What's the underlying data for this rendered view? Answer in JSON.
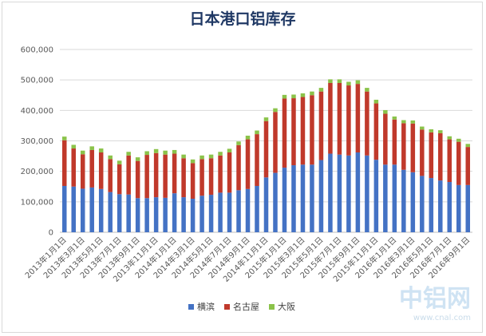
{
  "chart_data": {
    "type": "bar",
    "stacked": true,
    "title": "日本港口铝库存",
    "xlabel": "",
    "ylabel": "",
    "ylim": [
      0,
      600000
    ],
    "yticks": [
      "0",
      "100,000",
      "200,000",
      "300,000",
      "400,000",
      "500,000",
      "600,000"
    ],
    "grid": true,
    "legend": "bottom",
    "categories": [
      "2013年1月1日",
      "2013年2月1日",
      "2013年3月1日",
      "2013年4月1日",
      "2013年5月1日",
      "2013年6月1日",
      "2013年7月1日",
      "2013年8月1日",
      "2013年9月1日",
      "2013年10月1日",
      "2013年11月1日",
      "2013年12月1日",
      "2014年1月1日",
      "2014年2月1日",
      "2014年3月1日",
      "2014年4月1日",
      "2014年5月1日",
      "2014年6月1日",
      "2014年7月1日",
      "2014年8月1日",
      "2014年9月1日",
      "2014年10月1日",
      "2014年11月1日",
      "2014年12月1日",
      "2015年1月1日",
      "2015年2月1日",
      "2015年3月1日",
      "2015年4月1日",
      "2015年5月1日",
      "2015年6月1日",
      "2015年7月1日",
      "2015年8月1日",
      "2015年9月1日",
      "2015年10月1日",
      "2015年11月1日",
      "2015年12月1日",
      "2016年1月1日",
      "2016年2月1日",
      "2016年3月1日",
      "2016年4月1日",
      "2016年5月1日",
      "2016年6月1日",
      "2016年7月1日",
      "2016年8月1日",
      "2016年9月1日"
    ],
    "tick_labels": [
      "2013年1月1日",
      "2013年3月1日",
      "2013年5月1日",
      "2013年7月1日",
      "2013年9月1日",
      "2013年11月1日",
      "2014年1月1日",
      "2014年3月1日",
      "2014年5月1日",
      "2014年7月1日",
      "2014年9月1日",
      "2014年11月1日",
      "2015年1月1日",
      "2015年3月1日",
      "2015年5月1日",
      "2015年7月1日",
      "2015年9月1日",
      "2015年11月1日",
      "2016年1月1日",
      "2016年3月1日",
      "2016年5月1日",
      "2016年7月1日",
      "2016年9月1日"
    ],
    "series": [
      {
        "name": "横滨",
        "color": "#4472c4",
        "values": [
          152000,
          150000,
          143000,
          147000,
          142000,
          132000,
          125000,
          124000,
          112000,
          112000,
          115000,
          113000,
          128000,
          115000,
          110000,
          120000,
          123000,
          130000,
          130000,
          138000,
          142000,
          152000,
          180000,
          195000,
          212000,
          220000,
          222000,
          222000,
          237000,
          258000,
          255000,
          252000,
          262000,
          252000,
          238000,
          222000,
          222000,
          205000,
          197000,
          185000,
          178000,
          170000,
          165000,
          155000,
          155000
        ]
      },
      {
        "name": "名古屋",
        "color": "#c0392b",
        "values": [
          150000,
          125000,
          113000,
          123000,
          120000,
          108000,
          98000,
          128000,
          122000,
          142000,
          145000,
          142000,
          130000,
          128000,
          117000,
          120000,
          120000,
          122000,
          132000,
          148000,
          163000,
          170000,
          185000,
          200000,
          227000,
          220000,
          222000,
          228000,
          225000,
          232000,
          235000,
          230000,
          225000,
          210000,
          185000,
          167000,
          148000,
          153000,
          160000,
          152000,
          150000,
          155000,
          140000,
          142000,
          125000
        ]
      },
      {
        "name": "大阪",
        "color": "#8bc34a",
        "values": [
          12000,
          12000,
          12000,
          12000,
          13000,
          12000,
          12000,
          12000,
          12000,
          12000,
          13000,
          13000,
          12000,
          12000,
          12000,
          12000,
          12000,
          12000,
          12000,
          12000,
          12000,
          12000,
          12000,
          12000,
          12000,
          12000,
          12000,
          12000,
          12000,
          12000,
          12000,
          12000,
          12000,
          12000,
          12000,
          12000,
          10000,
          10000,
          10000,
          10000,
          10000,
          10000,
          10000,
          10000,
          10000
        ]
      }
    ]
  },
  "watermark": {
    "main": "中铝网",
    "url": "www.cnal.com"
  }
}
